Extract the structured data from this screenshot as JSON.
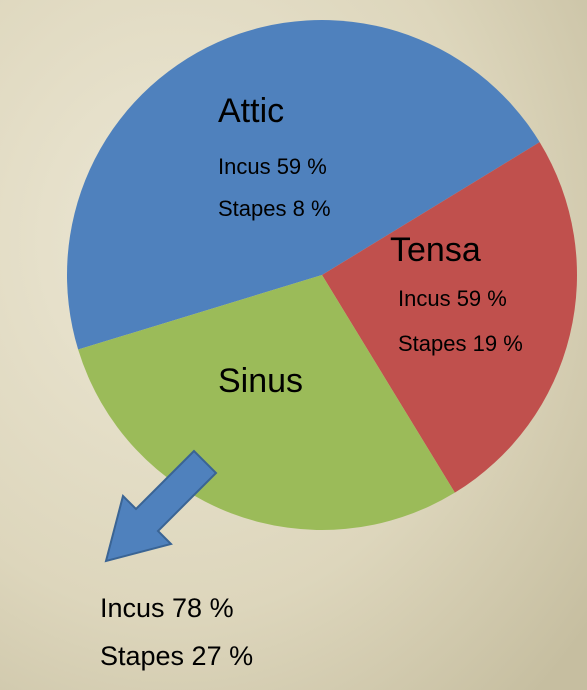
{
  "chart_data": {
    "type": "pie",
    "categories": [
      "Attic",
      "Tensa",
      "Sinus"
    ],
    "values": [
      46,
      25,
      29
    ],
    "colors": [
      "#4f81bd",
      "#c0504d",
      "#9bbb59"
    ],
    "notes": [
      [
        "Incus 59 %",
        "Stapes 8 %"
      ],
      [
        "Incus 59 %",
        "Stapes 19 %"
      ],
      [
        "Incus 78 %",
        "Stapes 27 %"
      ]
    ]
  }
}
